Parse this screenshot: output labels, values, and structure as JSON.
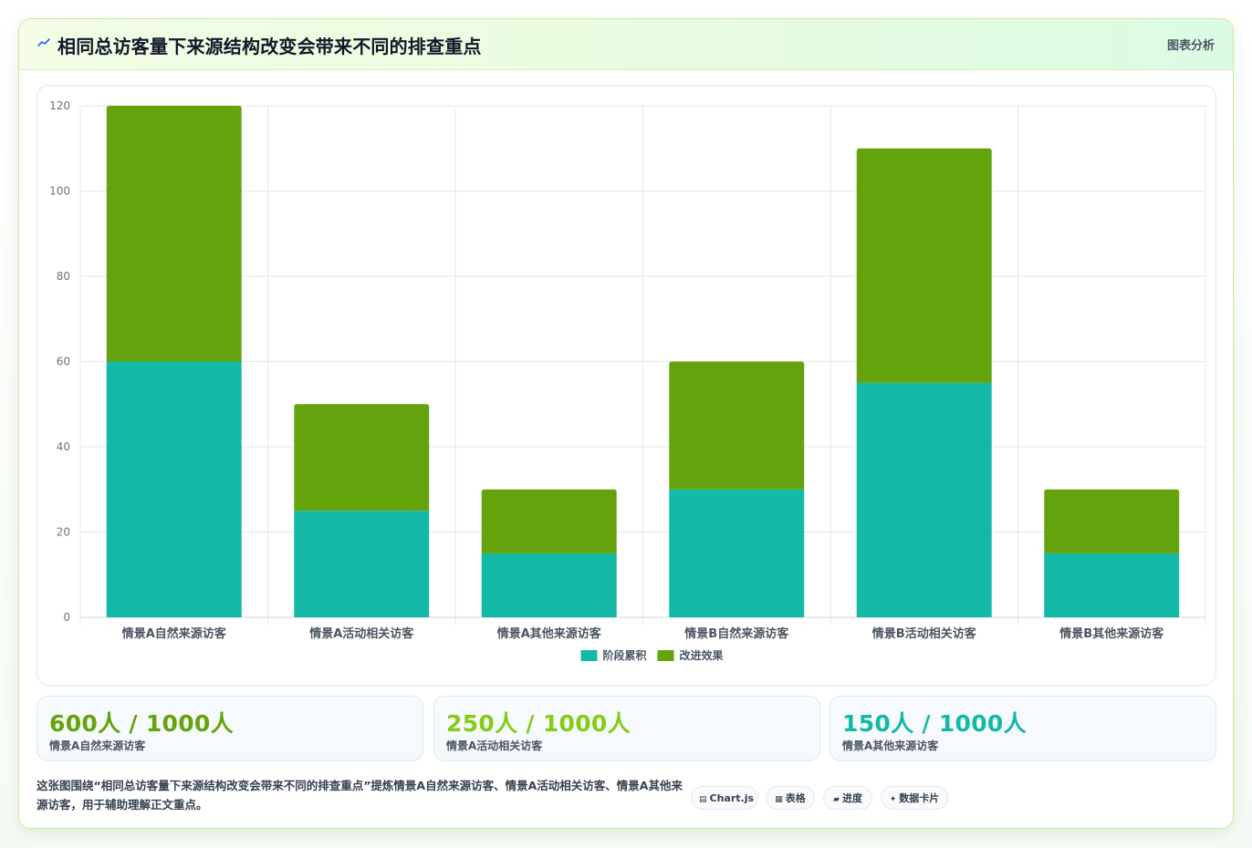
{
  "header": {
    "title": "相同总访客量下来源结构改变会带来不同的排查重点",
    "action_label": "图表分析",
    "icon": "trend-icon"
  },
  "colors": {
    "series_1": "#14b8a6",
    "series_2": "#65a30d",
    "stat_1": "#65a30d",
    "stat_2": "#84cc16",
    "stat_3": "#14b8a6"
  },
  "chart_data": {
    "type": "bar",
    "stacked": true,
    "categories": [
      "情景A自然来源访客",
      "情景A活动相关访客",
      "情景A其他来源访客",
      "情景B自然来源访客",
      "情景B活动相关访客",
      "情景B其他来源访客"
    ],
    "series": [
      {
        "name": "阶段累积",
        "values": [
          60,
          25,
          15,
          30,
          55,
          15
        ],
        "color": "#14b8a6"
      },
      {
        "name": "改进效果",
        "values": [
          60,
          25,
          15,
          30,
          55,
          15
        ],
        "color": "#65a30d"
      }
    ],
    "ylim": [
      0,
      120
    ],
    "yticks": [
      0,
      20,
      40,
      60,
      80,
      100,
      120
    ],
    "grid": true,
    "legend": "bottom",
    "xlabel": "",
    "ylabel": "",
    "title": ""
  },
  "stats": [
    {
      "value": "600人 / 1000人",
      "label": "情景A自然来源访客"
    },
    {
      "value": "250人 / 1000人",
      "label": "情景A活动相关访客"
    },
    {
      "value": "150人 / 1000人",
      "label": "情景A其他来源访客"
    }
  ],
  "footnote": "这张图围绕“相同总访客量下来源结构改变会带来不同的排查重点”提炼情景A自然来源访客、情景A活动相关访客、情景A其他来源访客，用于辅助理解正文重点。",
  "chips": [
    {
      "icon": "chart-icon",
      "glyph": "▤",
      "label": "Chart.js"
    },
    {
      "icon": "table-icon",
      "glyph": "▦",
      "label": "表格"
    },
    {
      "icon": "progress-icon",
      "glyph": "▰",
      "label": "进度"
    },
    {
      "icon": "sparkle-icon",
      "glyph": "✦",
      "label": "数据卡片"
    }
  ]
}
